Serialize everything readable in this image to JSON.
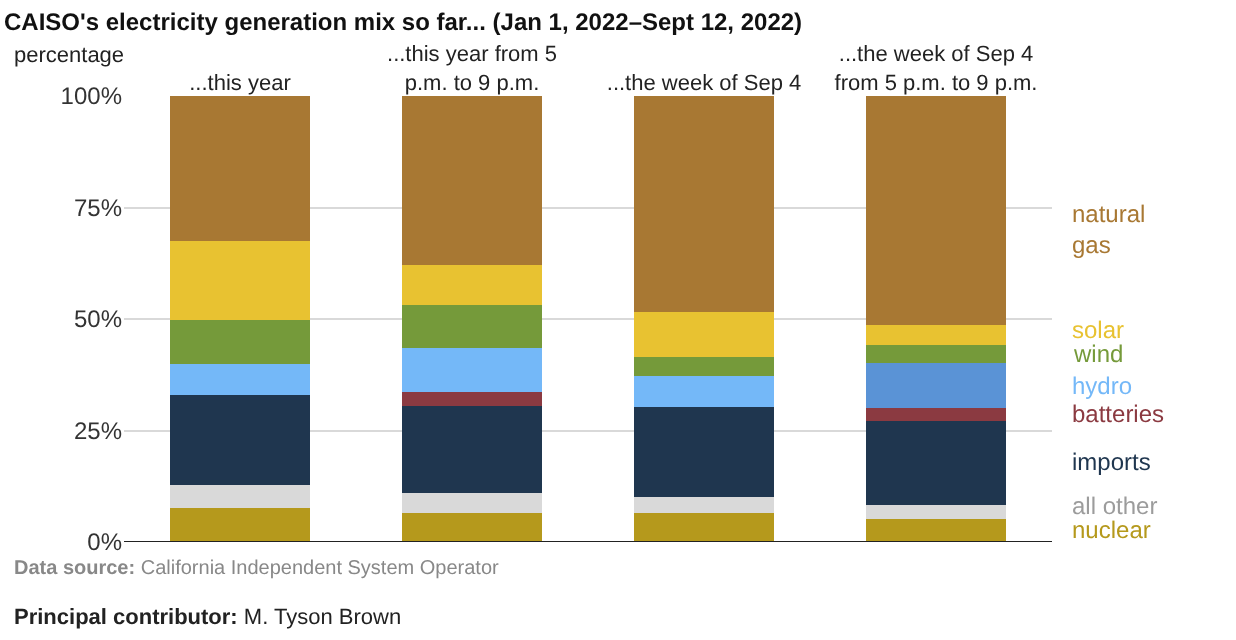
{
  "chart_data": {
    "type": "bar",
    "stacked": true,
    "title": "CAISO's electricity generation mix so far... (Jan 1, 2022–Sept 12, 2022)",
    "ylabel": "percentage",
    "categories": [
      "...this year",
      "...this year from 5 p.m. to 9 p.m.",
      "...the week of Sep 4",
      "...the week of Sep 4 from 5 p.m. to 9 p.m."
    ],
    "series": [
      {
        "name": "nuclear",
        "color": "#b5991c",
        "values": [
          7.6,
          6.4,
          6.4,
          5.1
        ]
      },
      {
        "name": "all other",
        "color": "#d9d9d9",
        "values": [
          5.1,
          4.5,
          3.6,
          3.3
        ]
      },
      {
        "name": "imports",
        "color": "#1f364f",
        "values": [
          20.2,
          19.7,
          20.3,
          18.7
        ]
      },
      {
        "name": "batteries",
        "color": "#8b3a41",
        "values": [
          null,
          3.0,
          null,
          2.9
        ]
      },
      {
        "name": "hydro",
        "color": "#74b8f8",
        "colors": [
          "#74b8f8",
          "#74b8f8",
          "#74b8f8",
          "#5a93d6"
        ],
        "values": [
          7.0,
          9.9,
          6.9,
          10.2
        ]
      },
      {
        "name": "wind",
        "color": "#759a3a",
        "values": [
          9.9,
          9.6,
          4.2,
          3.9
        ]
      },
      {
        "name": "solar",
        "color": "#e8c231",
        "values": [
          17.6,
          8.9,
          10.2,
          4.5
        ]
      },
      {
        "name": "natural gas",
        "color": "#a87833",
        "values": [
          32.6,
          38.0,
          48.4,
          51.4
        ]
      }
    ],
    "ylim": [
      0,
      100
    ],
    "yticks": [
      {
        "value": 0,
        "label": "0%"
      },
      {
        "value": 25,
        "label": "25%"
      },
      {
        "value": 50,
        "label": "50%"
      },
      {
        "value": 75,
        "label": "75%"
      },
      {
        "value": 100,
        "label": "100%"
      }
    ],
    "grid": "y",
    "legend": false,
    "annotations": [
      "Data source: California Independent System Operator",
      "Principal contributor: M. Tyson Brown"
    ]
  }
}
